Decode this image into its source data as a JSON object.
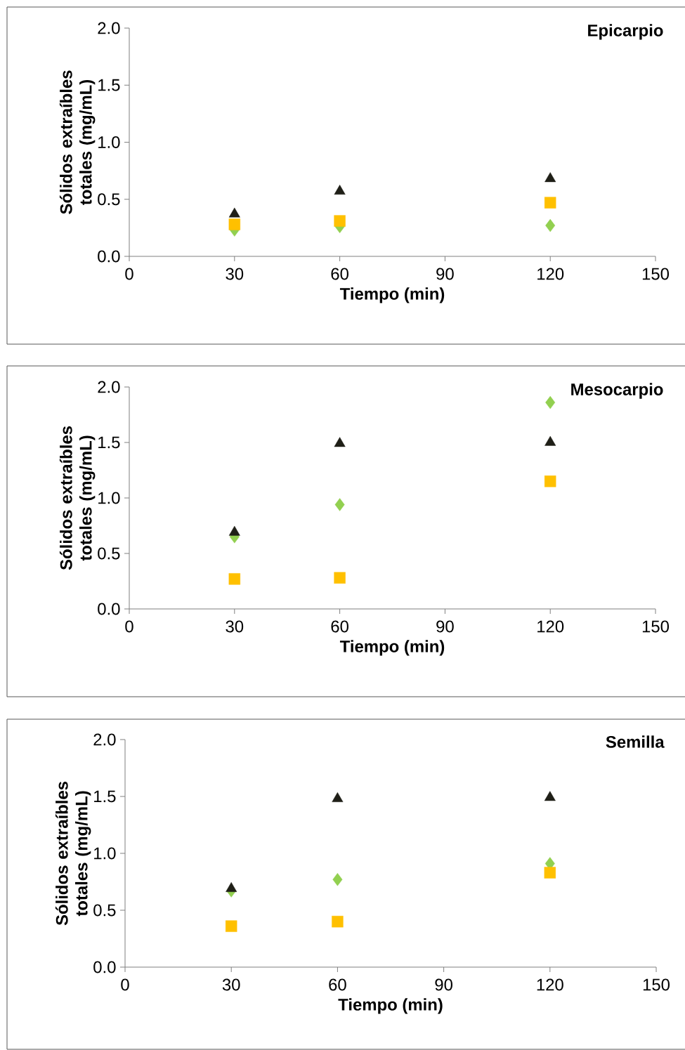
{
  "chart_data": [
    {
      "type": "scatter",
      "title": "Epicarpio",
      "xlabel": "Tiempo (min)",
      "ylabel": "Sólidos extraíbles totales (mg/mL)",
      "x": [
        30,
        60,
        120
      ],
      "xlim": [
        0,
        150
      ],
      "xticks": [
        0,
        30,
        60,
        90,
        120,
        150
      ],
      "ylim": [
        0,
        2
      ],
      "yticks": [
        {
          "value": 0,
          "label": "0.0"
        },
        {
          "value": 0.5,
          "label": "0.5"
        },
        {
          "value": 1,
          "label": "1.0"
        },
        {
          "value": 1.5,
          "label": "1.5"
        },
        {
          "value": 2,
          "label": "2.0"
        }
      ],
      "series": [
        {
          "color": "#92d050",
          "marker": "diamond",
          "values": [
            0.23,
            0.26,
            0.27
          ]
        },
        {
          "color": "#ffc000",
          "marker": "square",
          "values": [
            0.28,
            0.31,
            0.47
          ]
        },
        {
          "color": "#1f1f17",
          "marker": "triangle",
          "values": [
            0.37,
            0.57,
            0.68
          ]
        }
      ]
    },
    {
      "type": "scatter",
      "title": "Mesocarpio",
      "xlabel": "Tiempo (min)",
      "ylabel": "Sólidos extraíbles totales (mg/mL)",
      "x": [
        30,
        60,
        120
      ],
      "xlim": [
        0,
        150
      ],
      "xticks": [
        0,
        30,
        60,
        90,
        120,
        150
      ],
      "ylim": [
        0,
        2
      ],
      "yticks": [
        {
          "value": 0,
          "label": "0.0"
        },
        {
          "value": 0.5,
          "label": "0.5"
        },
        {
          "value": 1,
          "label": "1.0"
        },
        {
          "value": 1.5,
          "label": "1.5"
        },
        {
          "value": 2,
          "label": "2.0"
        }
      ],
      "series": [
        {
          "color": "#92d050",
          "marker": "diamond",
          "values": [
            0.65,
            0.94,
            1.86
          ]
        },
        {
          "color": "#ffc000",
          "marker": "square",
          "values": [
            0.27,
            0.28,
            1.15
          ]
        },
        {
          "color": "#1f1f17",
          "marker": "triangle",
          "values": [
            0.69,
            1.49,
            1.5
          ]
        }
      ]
    },
    {
      "type": "scatter",
      "title": "Semilla",
      "xlabel": "Tiempo (min)",
      "ylabel": "Sólidos extraíbles totales (mg/mL)",
      "x": [
        30,
        60,
        120
      ],
      "xlim": [
        0,
        150
      ],
      "xticks": [
        0,
        30,
        60,
        90,
        120,
        150
      ],
      "ylim": [
        0,
        2
      ],
      "yticks": [
        {
          "value": 0,
          "label": "0.0"
        },
        {
          "value": 0.5,
          "label": "0.5"
        },
        {
          "value": 1,
          "label": "1.0"
        },
        {
          "value": 1.5,
          "label": "1.5"
        },
        {
          "value": 2,
          "label": "2.0"
        }
      ],
      "series": [
        {
          "color": "#92d050",
          "marker": "diamond",
          "values": [
            0.67,
            0.77,
            0.91
          ]
        },
        {
          "color": "#ffc000",
          "marker": "square",
          "values": [
            0.36,
            0.4,
            0.83
          ]
        },
        {
          "color": "#1f1f17",
          "marker": "triangle",
          "values": [
            0.69,
            1.48,
            1.49
          ]
        }
      ]
    }
  ]
}
